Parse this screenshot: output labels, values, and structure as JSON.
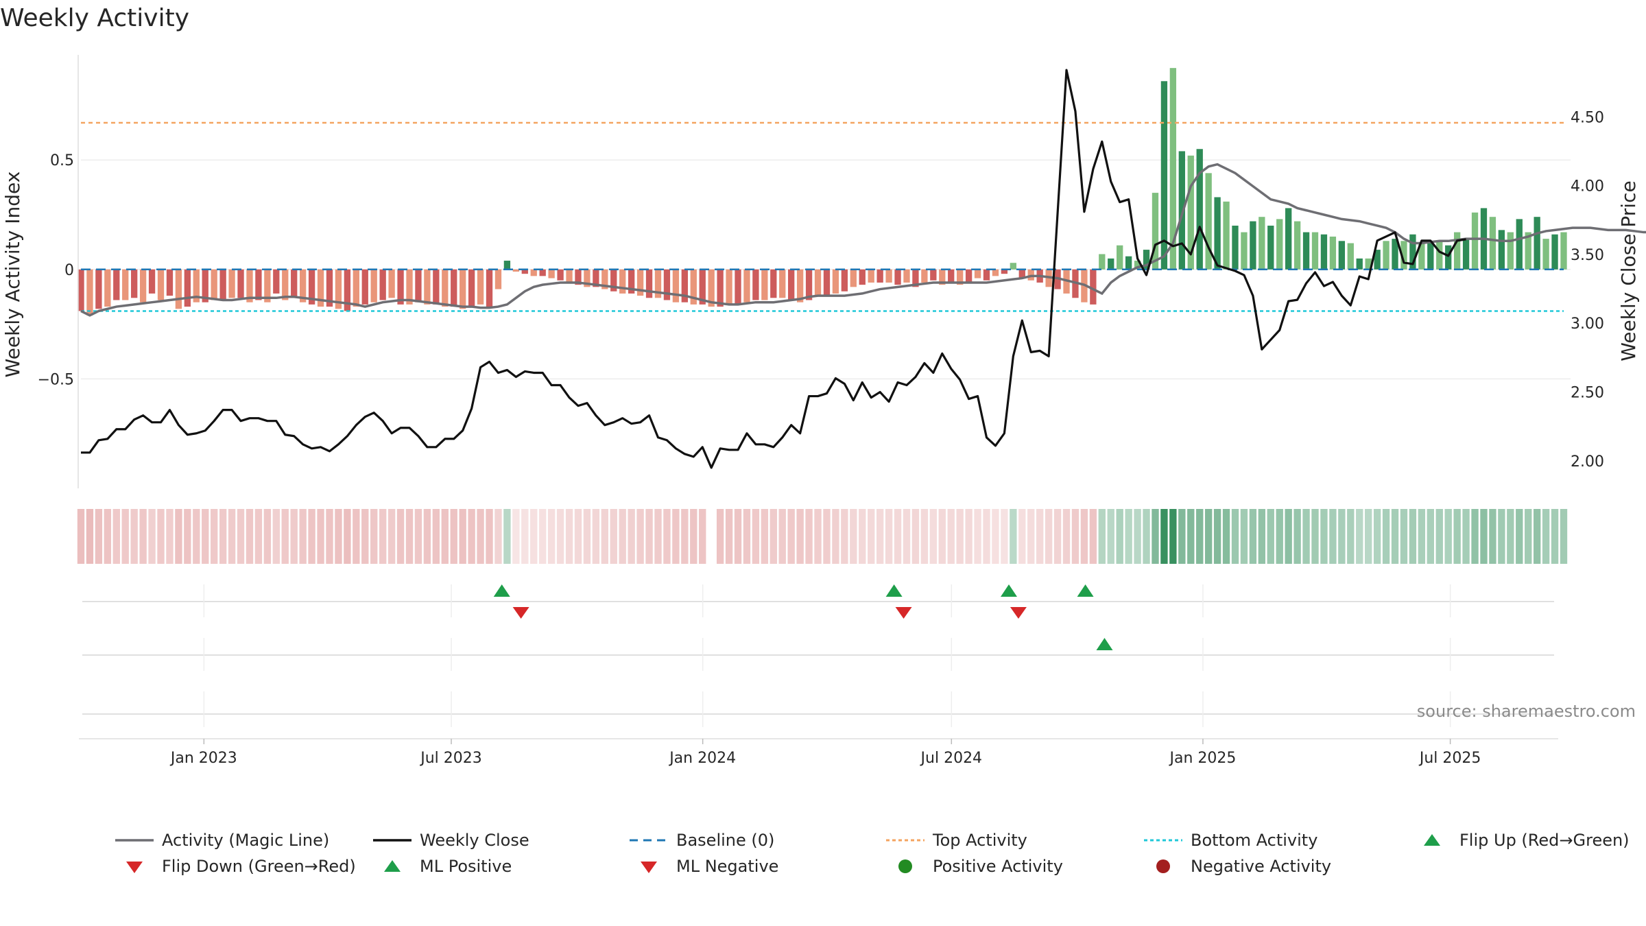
{
  "title": "Weekly Activity",
  "source": "source: sharemaestro.com",
  "colors": {
    "magic_line": "#6e6e73",
    "close": "#111111",
    "baseline": "#1f77b4",
    "top": "#f4a460",
    "bottom": "#20c8d8",
    "up": "#1e9e4a",
    "down": "#d62728",
    "pos_strong": "#2e8b57",
    "pos_weak": "#7fbf7f",
    "neg_strong": "#cd5c5c",
    "neg_weak": "#e9967a"
  },
  "chart_data": {
    "type": "bar",
    "x_start": "2022-10-03",
    "x_end": "2025-09-22",
    "x_ticks": [
      "Jan 2023",
      "Jul 2023",
      "Jan 2024",
      "Jul 2024",
      "Jan 2025",
      "Jul 2025"
    ],
    "x_tick_dates": [
      "2023-01-01",
      "2023-07-01",
      "2024-01-01",
      "2024-07-01",
      "2025-01-01",
      "2025-07-01"
    ],
    "ylabel_left": "Weekly Activity Index",
    "ylabel_right": "Weekly Close Price",
    "ylim_left": [
      -1.0,
      0.98
    ],
    "ylim_right": [
      1.8,
      4.95
    ],
    "yticks_left": [
      0.5,
      0,
      -0.5
    ],
    "yticks_left_labels": [
      "0.5",
      "0",
      "−0.5"
    ],
    "yticks_right": [
      2.0,
      2.5,
      3.0,
      3.5,
      4.0,
      4.5
    ],
    "yticks_right_labels": [
      "2.00",
      "2.50",
      "3.00",
      "3.50",
      "4.00",
      "4.50"
    ],
    "top_activity": 0.67,
    "bottom_activity": -0.19,
    "baseline": 0,
    "grid": true,
    "series": [
      {
        "name": "Activity (Magic Line)",
        "values": [
          -0.19,
          -0.21,
          -0.19,
          -0.18,
          -0.17,
          -0.165,
          -0.16,
          -0.155,
          -0.15,
          -0.145,
          -0.14,
          -0.135,
          -0.13,
          -0.125,
          -0.13,
          -0.135,
          -0.14,
          -0.14,
          -0.135,
          -0.13,
          -0.13,
          -0.13,
          -0.13,
          -0.125,
          -0.125,
          -0.13,
          -0.135,
          -0.14,
          -0.145,
          -0.15,
          -0.155,
          -0.16,
          -0.17,
          -0.16,
          -0.15,
          -0.145,
          -0.14,
          -0.14,
          -0.145,
          -0.15,
          -0.155,
          -0.16,
          -0.165,
          -0.17,
          -0.17,
          -0.175,
          -0.175,
          -0.17,
          -0.16,
          -0.13,
          -0.1,
          -0.08,
          -0.07,
          -0.065,
          -0.06,
          -0.06,
          -0.06,
          -0.065,
          -0.07,
          -0.075,
          -0.08,
          -0.085,
          -0.09,
          -0.095,
          -0.1,
          -0.105,
          -0.11,
          -0.115,
          -0.12,
          -0.13,
          -0.14,
          -0.15,
          -0.155,
          -0.16,
          -0.16,
          -0.155,
          -0.15,
          -0.15,
          -0.15,
          -0.145,
          -0.14,
          -0.135,
          -0.125,
          -0.12,
          -0.12,
          -0.12,
          -0.12,
          -0.115,
          -0.11,
          -0.1,
          -0.09,
          -0.085,
          -0.08,
          -0.075,
          -0.07,
          -0.065,
          -0.06,
          -0.06,
          -0.06,
          -0.06,
          -0.06,
          -0.06,
          -0.06,
          -0.055,
          -0.05,
          -0.045,
          -0.04,
          -0.03,
          -0.03,
          -0.035,
          -0.04,
          -0.05,
          -0.06,
          -0.07,
          -0.09,
          -0.11,
          -0.06,
          -0.03,
          -0.01,
          0.01,
          0.02,
          0.04,
          0.06,
          0.12,
          0.25,
          0.38,
          0.44,
          0.47,
          0.48,
          0.46,
          0.44,
          0.41,
          0.38,
          0.35,
          0.32,
          0.31,
          0.3,
          0.28,
          0.27,
          0.26,
          0.25,
          0.24,
          0.23,
          0.225,
          0.22,
          0.21,
          0.2,
          0.19,
          0.17,
          0.14,
          0.12,
          0.12,
          0.125,
          0.13,
          0.13,
          0.135,
          0.14,
          0.14,
          0.14,
          0.135,
          0.13,
          0.13,
          0.14,
          0.15,
          0.165,
          0.175,
          0.18,
          0.185,
          0.19,
          0.19,
          0.19,
          0.185,
          0.18,
          0.18,
          0.18,
          0.175,
          0.17,
          0.17,
          0.17
        ]
      },
      {
        "name": "Weekly Close",
        "values": [
          2.06,
          2.06,
          2.15,
          2.16,
          2.23,
          2.23,
          2.3,
          2.33,
          2.28,
          2.28,
          2.37,
          2.26,
          2.19,
          2.2,
          2.22,
          2.29,
          2.37,
          2.37,
          2.29,
          2.31,
          2.31,
          2.29,
          2.29,
          2.19,
          2.18,
          2.12,
          2.09,
          2.1,
          2.07,
          2.12,
          2.18,
          2.26,
          2.32,
          2.35,
          2.29,
          2.2,
          2.24,
          2.24,
          2.18,
          2.1,
          2.1,
          2.16,
          2.16,
          2.22,
          2.38,
          2.68,
          2.72,
          2.64,
          2.66,
          2.61,
          2.65,
          2.64,
          2.64,
          2.55,
          2.55,
          2.46,
          2.4,
          2.42,
          2.33,
          2.26,
          2.28,
          2.31,
          2.27,
          2.28,
          2.33,
          2.17,
          2.15,
          2.09,
          2.05,
          2.03,
          2.1,
          1.95,
          2.09,
          2.08,
          2.08,
          2.2,
          2.12,
          2.12,
          2.1,
          2.17,
          2.26,
          2.2,
          2.47,
          2.47,
          2.49,
          2.6,
          2.56,
          2.44,
          2.57,
          2.46,
          2.5,
          2.43,
          2.57,
          2.55,
          2.61,
          2.71,
          2.64,
          2.78,
          2.67,
          2.59,
          2.45,
          2.47,
          2.17,
          2.11,
          2.2,
          2.76,
          3.02,
          2.79,
          2.8,
          2.76,
          3.8,
          4.84,
          4.54,
          3.81,
          4.12,
          4.32,
          4.03,
          3.88,
          3.9,
          3.47,
          3.35,
          3.57,
          3.6,
          3.56,
          3.58,
          3.5,
          3.7,
          3.55,
          3.42,
          3.4,
          3.38,
          3.35,
          3.2,
          2.81,
          2.88,
          2.95,
          3.16,
          3.17,
          3.29,
          3.37,
          3.27,
          3.3,
          3.2,
          3.13,
          3.34,
          3.32,
          3.6,
          3.63,
          3.66,
          3.44,
          3.43,
          3.6,
          3.6,
          3.52,
          3.49,
          3.6,
          3.61
        ]
      },
      {
        "name": "Baseline (0)"
      },
      {
        "name": "Top Activity"
      },
      {
        "name": "Bottom Activity"
      },
      {
        "name": "Flip Up (Red→Green)",
        "x": [
          "2023-08-07",
          "2024-05-20",
          "2024-08-12",
          "2024-10-07"
        ]
      },
      {
        "name": "Flip Down (Green→Red)",
        "x": [
          "2023-08-21",
          "2024-05-27",
          "2024-08-19"
        ]
      },
      {
        "name": "ML Positive",
        "x": [
          "2024-10-21"
        ]
      },
      {
        "name": "ML Negative",
        "x": []
      },
      {
        "name": "Positive Activity"
      },
      {
        "name": "Negative Activity"
      }
    ],
    "bars": [
      -0.19,
      -0.21,
      -0.18,
      -0.17,
      -0.14,
      -0.14,
      -0.13,
      -0.15,
      -0.11,
      -0.14,
      -0.12,
      -0.18,
      -0.17,
      -0.15,
      -0.15,
      -0.14,
      -0.14,
      -0.13,
      -0.13,
      -0.15,
      -0.14,
      -0.15,
      -0.11,
      -0.14,
      -0.13,
      -0.15,
      -0.16,
      -0.17,
      -0.17,
      -0.18,
      -0.19,
      -0.17,
      -0.16,
      -0.15,
      -0.14,
      -0.13,
      -0.16,
      -0.16,
      -0.15,
      -0.16,
      -0.16,
      -0.17,
      -0.17,
      -0.18,
      -0.17,
      -0.16,
      -0.17,
      -0.09,
      0.04,
      -0.01,
      -0.02,
      -0.03,
      -0.03,
      -0.04,
      -0.05,
      -0.06,
      -0.07,
      -0.08,
      -0.08,
      -0.09,
      -0.1,
      -0.11,
      -0.11,
      -0.12,
      -0.13,
      -0.13,
      -0.14,
      -0.15,
      -0.15,
      -0.16,
      -0.16,
      -0.17,
      -0.17,
      -0.16,
      -0.16,
      -0.15,
      -0.14,
      -0.14,
      -0.13,
      -0.13,
      -0.14,
      -0.15,
      -0.14,
      -0.12,
      -0.12,
      -0.11,
      -0.1,
      -0.08,
      -0.07,
      -0.06,
      -0.06,
      -0.06,
      -0.07,
      -0.06,
      -0.08,
      -0.06,
      -0.05,
      -0.07,
      -0.06,
      -0.07,
      -0.06,
      -0.04,
      -0.05,
      -0.03,
      -0.02,
      0.03,
      -0.04,
      -0.05,
      -0.06,
      -0.08,
      -0.09,
      -0.11,
      -0.13,
      -0.15,
      -0.16,
      0.07,
      0.05,
      0.11,
      0.06,
      0.04,
      0.09,
      0.35,
      0.86,
      0.92,
      0.54,
      0.52,
      0.55,
      0.44,
      0.33,
      0.31,
      0.2,
      0.17,
      0.22,
      0.24,
      0.2,
      0.23,
      0.28,
      0.22,
      0.17,
      0.17,
      0.16,
      0.15,
      0.13,
      0.12,
      0.05,
      0.05,
      0.09,
      0.13,
      0.14,
      0.13,
      0.16,
      0.12,
      0.12,
      0.13,
      0.11,
      0.17,
      0.14,
      0.26,
      0.28,
      0.24,
      0.18,
      0.17,
      0.23,
      0.17,
      0.24,
      0.14,
      0.16,
      0.17
    ]
  },
  "legend": {
    "magic_line": "Activity (Magic Line)",
    "close": "Weekly Close",
    "baseline": "Baseline (0)",
    "top": "Top Activity",
    "bottom": "Bottom Activity",
    "flip_up": "Flip Up (Red→Green)",
    "flip_down": "Flip Down (Green→Red)",
    "ml_pos": "ML Positive",
    "ml_neg": "ML Negative",
    "pos_act": "Positive Activity",
    "neg_act": "Negative Activity"
  }
}
